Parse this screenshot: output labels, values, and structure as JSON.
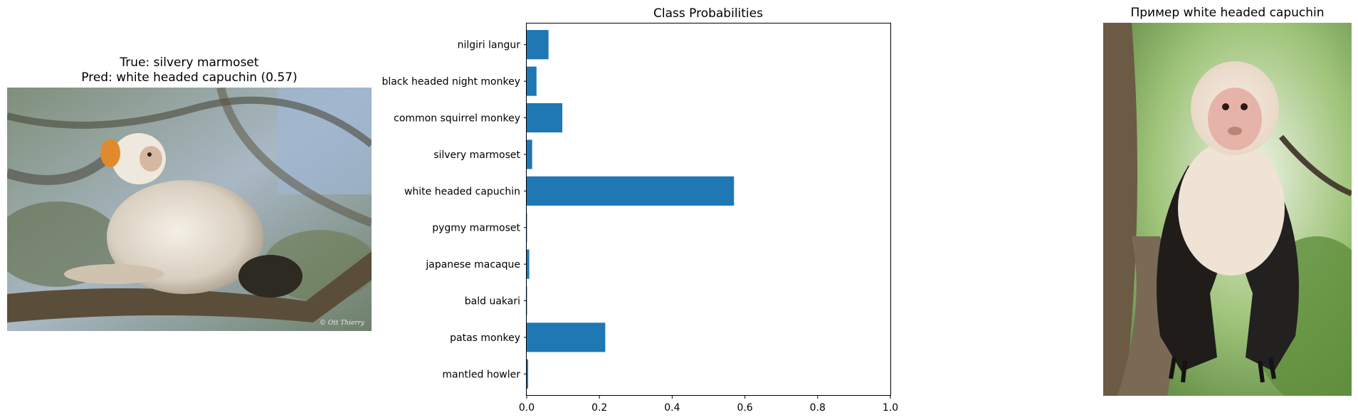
{
  "left_panel": {
    "title_line1": "True: silvery marmoset",
    "title_line2": "Pred: white headed capuchin (0.57)",
    "watermark": "© Ott Thierry"
  },
  "right_panel": {
    "title": "Пример white headed capuchin"
  },
  "chart_data": {
    "type": "bar",
    "orientation": "horizontal",
    "title": "Class Probabilities",
    "xlabel": "",
    "ylabel": "",
    "categories": [
      "nilgiri langur",
      "black headed night monkey",
      "common squirrel monkey",
      "silvery marmoset",
      "white headed capuchin",
      "pygmy marmoset",
      "japanese macaque",
      "bald uakari",
      "patas monkey",
      "mantled howler"
    ],
    "values": [
      0.06,
      0.027,
      0.098,
      0.015,
      0.57,
      0.001,
      0.007,
      0.001,
      0.216,
      0.004
    ],
    "xlim": [
      0,
      1.0
    ],
    "xticks": [
      0.0,
      0.2,
      0.4,
      0.6,
      0.8,
      1.0
    ],
    "xtick_labels": [
      "0.0",
      "0.2",
      "0.4",
      "0.6",
      "0.8",
      "1.0"
    ],
    "bar_color": "#1f77b4",
    "grid": false
  }
}
